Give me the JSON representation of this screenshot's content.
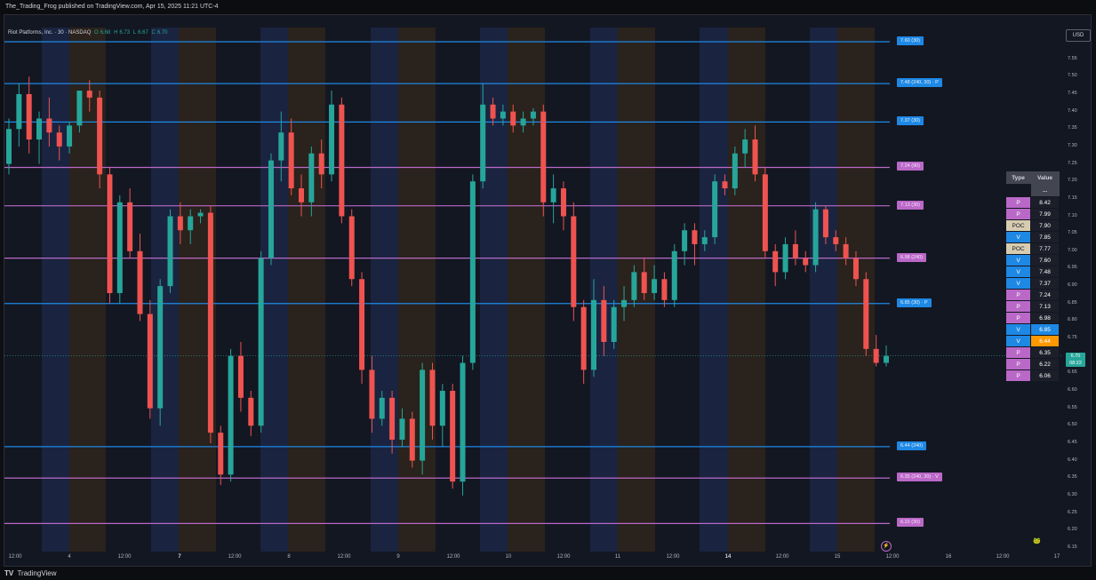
{
  "header": {
    "publisher_line": "The_Trading_Frog published on TradingView.com, Apr 15, 2025 11:21 UTC-4"
  },
  "legend": {
    "symbol": "Riot Platforms, Inc. · 30 · NASDAQ",
    "o_label": "O",
    "o": "6.68",
    "h_label": "H",
    "h": "6.73",
    "l_label": "L",
    "l": "6.67",
    "c_label": "C",
    "c": "6.70"
  },
  "currency_button": "USD",
  "footer": {
    "brand": "TradingView"
  },
  "price_axis": {
    "min": 6.15,
    "max": 7.55,
    "step": 0.05
  },
  "time_axis": [
    {
      "label": "12:00",
      "bold": false
    },
    {
      "label": "4",
      "bold": false
    },
    {
      "label": "12:00",
      "bold": false
    },
    {
      "label": "7",
      "bold": true
    },
    {
      "label": "12:00",
      "bold": false
    },
    {
      "label": "8",
      "bold": false
    },
    {
      "label": "12:00",
      "bold": false
    },
    {
      "label": "9",
      "bold": false
    },
    {
      "label": "12:00",
      "bold": false
    },
    {
      "label": "10",
      "bold": false
    },
    {
      "label": "12:00",
      "bold": false
    },
    {
      "label": "11",
      "bold": false
    },
    {
      "label": "12:00",
      "bold": false
    },
    {
      "label": "14",
      "bold": true
    },
    {
      "label": "12:00",
      "bold": false
    },
    {
      "label": "15",
      "bold": false
    },
    {
      "label": "12:00",
      "bold": false
    },
    {
      "label": "16",
      "bold": false
    },
    {
      "label": "12:00",
      "bold": false
    },
    {
      "label": "17",
      "bold": false
    }
  ],
  "levels": [
    {
      "price": 7.6,
      "label": "7.60 (30)",
      "color": "#1e88e5"
    },
    {
      "price": 7.48,
      "label": "7.48 (240, 30) · P",
      "color": "#1e88e5"
    },
    {
      "price": 7.37,
      "label": "7.37 (30)",
      "color": "#1e88e5"
    },
    {
      "price": 7.24,
      "label": "7.24 (90)",
      "color": "#ba68c8"
    },
    {
      "price": 7.13,
      "label": "7.13 (30)",
      "color": "#ba68c8"
    },
    {
      "price": 6.98,
      "label": "6.98 (240)",
      "color": "#ba68c8"
    },
    {
      "price": 6.85,
      "label": "6.85 (30) · P",
      "color": "#1e88e5"
    },
    {
      "price": 6.44,
      "label": "6.44 (240)",
      "color": "#1e88e5"
    },
    {
      "price": 6.35,
      "label": "6.35 (240, 30) · V",
      "color": "#ba68c8"
    },
    {
      "price": 6.22,
      "label": "6.22 (30)",
      "color": "#ba68c8"
    }
  ],
  "current_price": {
    "price": "6.70",
    "countdown": "08:22",
    "value": 6.7
  },
  "table": {
    "headers": [
      "Type",
      "Value"
    ],
    "subheader": "...",
    "rows": [
      {
        "type": "P",
        "value": "8.42",
        "type_color": "#ba68c8",
        "value_color": "#131722"
      },
      {
        "type": "P",
        "value": "7.99",
        "type_color": "#ba68c8",
        "value_color": "#131722"
      },
      {
        "type": "POC",
        "value": "7.90",
        "type_color": "#d7ccb0",
        "value_color": "#131722"
      },
      {
        "type": "V",
        "value": "7.85",
        "type_color": "#1e88e5",
        "value_color": "#131722"
      },
      {
        "type": "POC",
        "value": "7.77",
        "type_color": "#d7ccb0",
        "value_color": "#131722"
      },
      {
        "type": "V",
        "value": "7.60",
        "type_color": "#1e88e5",
        "value_color": "#131722"
      },
      {
        "type": "V",
        "value": "7.48",
        "type_color": "#1e88e5",
        "value_color": "#131722"
      },
      {
        "type": "V",
        "value": "7.37",
        "type_color": "#1e88e5",
        "value_color": "#131722"
      },
      {
        "type": "P",
        "value": "7.24",
        "type_color": "#ba68c8",
        "value_color": "#131722"
      },
      {
        "type": "P",
        "value": "7.13",
        "type_color": "#ba68c8",
        "value_color": "#131722"
      },
      {
        "type": "P",
        "value": "6.98",
        "type_color": "#ba68c8",
        "value_color": "#131722"
      },
      {
        "type": "V",
        "value": "6.85",
        "type_color": "#1e88e5",
        "value_color": "#1e88e5"
      },
      {
        "type": "V",
        "value": "6.44",
        "type_color": "#1e88e5",
        "value_color": "#ff9800"
      },
      {
        "type": "P",
        "value": "6.35",
        "type_color": "#ba68c8",
        "value_color": "#131722"
      },
      {
        "type": "P",
        "value": "6.22",
        "type_color": "#ba68c8",
        "value_color": "#131722"
      },
      {
        "type": "P",
        "value": "6.06",
        "type_color": "#ba68c8",
        "value_color": "#131722"
      }
    ]
  },
  "colors": {
    "up": "#26a69a",
    "down": "#ef5350",
    "band_blue": "#1a2440",
    "band_orange": "#2a221c"
  },
  "chart_data": {
    "type": "candlestick",
    "candles": [
      [
        7.25,
        7.38,
        7.22,
        7.35
      ],
      [
        7.35,
        7.48,
        7.3,
        7.45
      ],
      [
        7.45,
        7.5,
        7.28,
        7.32
      ],
      [
        7.32,
        7.4,
        7.25,
        7.38
      ],
      [
        7.38,
        7.44,
        7.3,
        7.34
      ],
      [
        7.34,
        7.36,
        7.26,
        7.3
      ],
      [
        7.3,
        7.37,
        7.28,
        7.36
      ],
      [
        7.36,
        7.46,
        7.34,
        7.46
      ],
      [
        7.46,
        7.49,
        7.4,
        7.44
      ],
      [
        7.44,
        7.46,
        7.18,
        7.22
      ],
      [
        7.22,
        7.24,
        6.85,
        6.88
      ],
      [
        6.88,
        7.16,
        6.85,
        7.14
      ],
      [
        7.14,
        7.18,
        6.98,
        7.0
      ],
      [
        7.0,
        7.05,
        6.8,
        6.82
      ],
      [
        6.82,
        6.86,
        6.52,
        6.55
      ],
      [
        6.55,
        6.92,
        6.5,
        6.9
      ],
      [
        6.9,
        7.12,
        6.88,
        7.1
      ],
      [
        7.1,
        7.14,
        7.02,
        7.06
      ],
      [
        7.06,
        7.12,
        7.02,
        7.1
      ],
      [
        7.1,
        7.12,
        7.08,
        7.11
      ],
      [
        7.11,
        7.13,
        6.45,
        6.48
      ],
      [
        6.48,
        6.5,
        6.33,
        6.36
      ],
      [
        6.36,
        6.72,
        6.34,
        6.7
      ],
      [
        6.7,
        6.74,
        6.54,
        6.58
      ],
      [
        6.58,
        6.6,
        6.47,
        6.5
      ],
      [
        6.5,
        7.0,
        6.48,
        6.98
      ],
      [
        6.98,
        7.28,
        6.96,
        7.26
      ],
      [
        7.26,
        7.4,
        7.2,
        7.34
      ],
      [
        7.34,
        7.38,
        7.16,
        7.18
      ],
      [
        7.18,
        7.22,
        7.1,
        7.14
      ],
      [
        7.14,
        7.3,
        7.1,
        7.28
      ],
      [
        7.28,
        7.32,
        7.18,
        7.22
      ],
      [
        7.22,
        7.46,
        7.2,
        7.42
      ],
      [
        7.42,
        7.44,
        7.08,
        7.1
      ],
      [
        7.1,
        7.12,
        6.9,
        6.92
      ],
      [
        6.92,
        6.94,
        6.62,
        6.66
      ],
      [
        6.66,
        6.7,
        6.48,
        6.52
      ],
      [
        6.52,
        6.6,
        6.5,
        6.58
      ],
      [
        6.58,
        6.6,
        6.42,
        6.46
      ],
      [
        6.46,
        6.55,
        6.44,
        6.52
      ],
      [
        6.52,
        6.54,
        6.38,
        6.4
      ],
      [
        6.4,
        6.68,
        6.36,
        6.66
      ],
      [
        6.66,
        6.68,
        6.46,
        6.5
      ],
      [
        6.5,
        6.62,
        6.44,
        6.6
      ],
      [
        6.6,
        6.62,
        6.32,
        6.34
      ],
      [
        6.34,
        6.7,
        6.3,
        6.68
      ],
      [
        6.68,
        7.22,
        6.66,
        7.2
      ],
      [
        7.2,
        7.48,
        7.18,
        7.42
      ],
      [
        7.42,
        7.44,
        7.36,
        7.38
      ],
      [
        7.38,
        7.42,
        7.36,
        7.4
      ],
      [
        7.4,
        7.42,
        7.34,
        7.36
      ],
      [
        7.36,
        7.4,
        7.34,
        7.38
      ],
      [
        7.38,
        7.41,
        7.36,
        7.4
      ],
      [
        7.4,
        7.42,
        7.1,
        7.14
      ],
      [
        7.14,
        7.22,
        7.08,
        7.18
      ],
      [
        7.18,
        7.2,
        7.06,
        7.1
      ],
      [
        7.1,
        7.14,
        6.8,
        6.84
      ],
      [
        6.84,
        6.86,
        6.62,
        6.66
      ],
      [
        6.66,
        6.92,
        6.64,
        6.86
      ],
      [
        6.86,
        6.9,
        6.7,
        6.74
      ],
      [
        6.74,
        6.86,
        6.72,
        6.84
      ],
      [
        6.84,
        6.9,
        6.8,
        6.86
      ],
      [
        6.86,
        6.96,
        6.84,
        6.94
      ],
      [
        6.94,
        6.98,
        6.86,
        6.88
      ],
      [
        6.88,
        6.96,
        6.86,
        6.92
      ],
      [
        6.92,
        6.94,
        6.84,
        6.86
      ],
      [
        6.86,
        7.02,
        6.84,
        7.0
      ],
      [
        7.0,
        7.08,
        6.96,
        7.06
      ],
      [
        7.06,
        7.08,
        6.96,
        7.02
      ],
      [
        7.02,
        7.06,
        7.0,
        7.04
      ],
      [
        7.04,
        7.22,
        7.02,
        7.2
      ],
      [
        7.2,
        7.22,
        7.16,
        7.18
      ],
      [
        7.18,
        7.3,
        7.16,
        7.28
      ],
      [
        7.28,
        7.35,
        7.24,
        7.32
      ],
      [
        7.32,
        7.36,
        7.2,
        7.22
      ],
      [
        7.22,
        7.24,
        6.98,
        7.0
      ],
      [
        7.0,
        7.02,
        6.9,
        6.94
      ],
      [
        6.94,
        7.04,
        6.92,
        7.02
      ],
      [
        7.02,
        7.06,
        6.96,
        6.98
      ],
      [
        6.98,
        7.0,
        6.94,
        6.96
      ],
      [
        6.96,
        7.14,
        6.94,
        7.12
      ],
      [
        7.12,
        7.13,
        7.02,
        7.04
      ],
      [
        7.04,
        7.06,
        7.0,
        7.02
      ],
      [
        7.02,
        7.04,
        6.96,
        6.98
      ],
      [
        6.98,
        7.0,
        6.9,
        6.92
      ],
      [
        6.92,
        6.94,
        6.7,
        6.72
      ],
      [
        6.72,
        6.76,
        6.67,
        6.68
      ],
      [
        6.68,
        6.73,
        6.67,
        6.7
      ]
    ]
  }
}
